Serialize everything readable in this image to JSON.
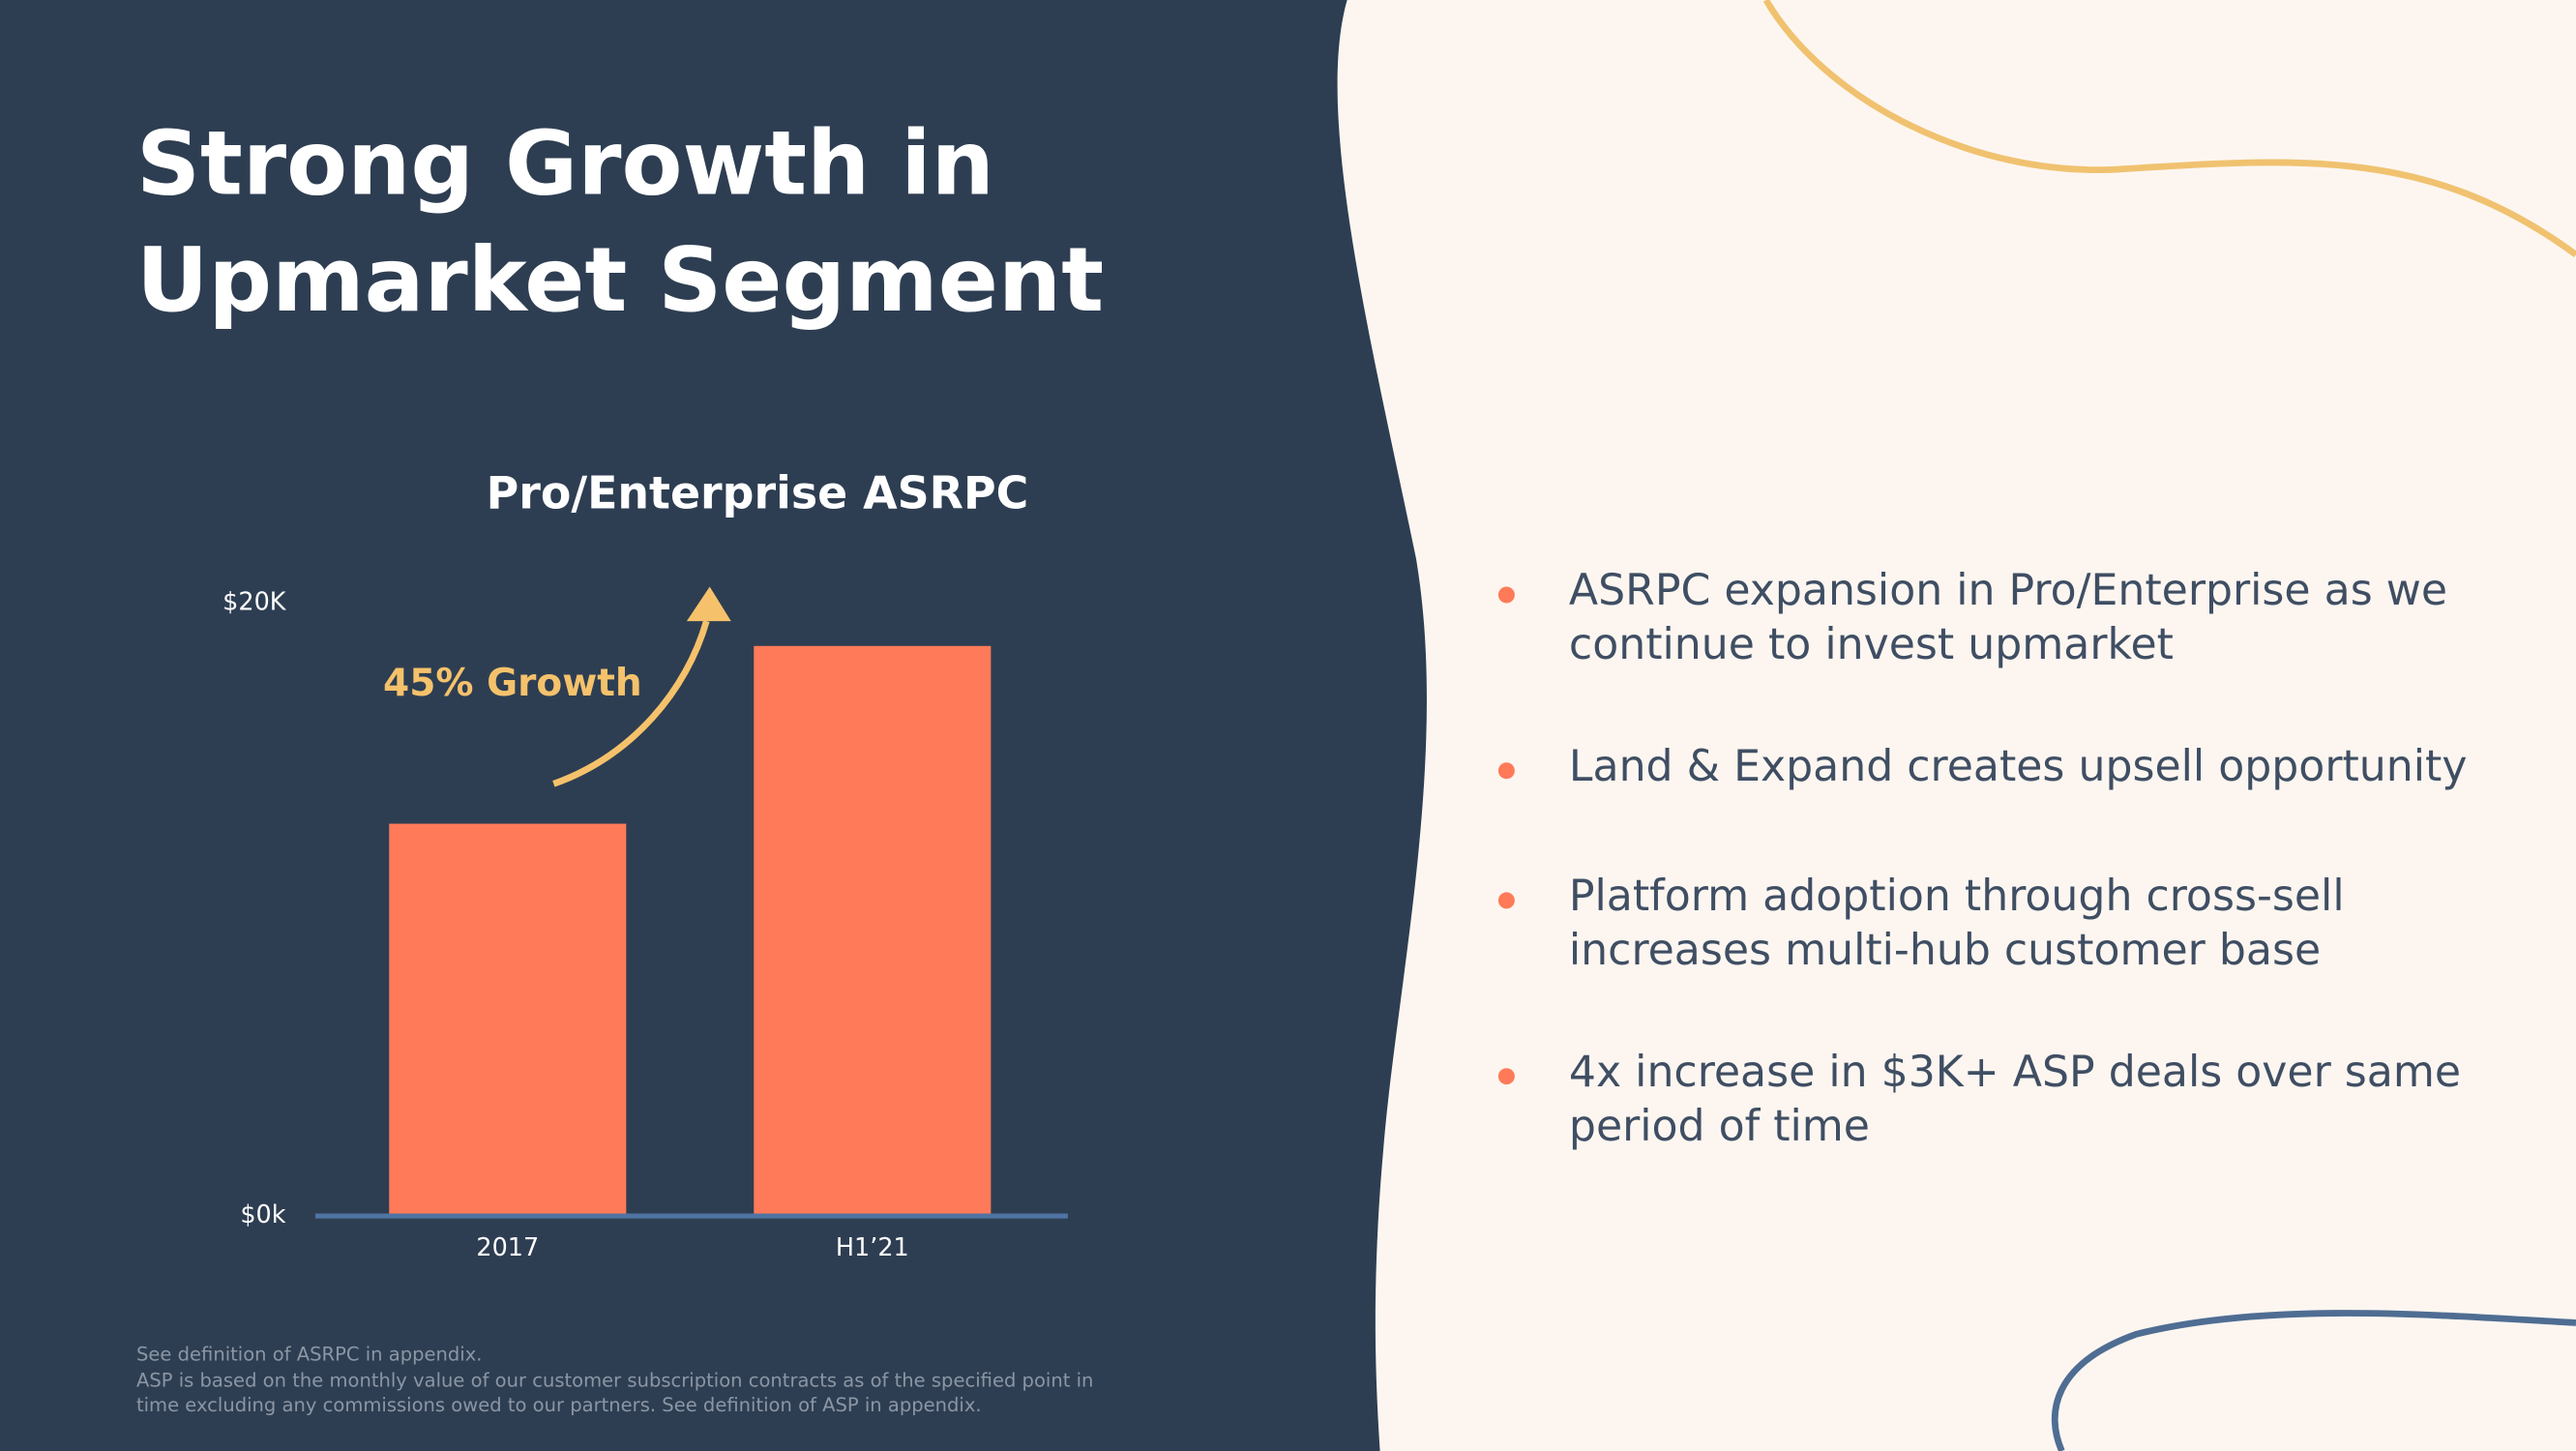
{
  "slide": {
    "title": "Strong Growth in Upmarket Segment",
    "bullets": [
      "ASRPC expansion in Pro/Enterprise as we continue to invest upmarket",
      "Land & Expand creates upsell opportunity",
      "Platform adoption through cross-sell increases multi-hub customer base",
      "4x increase in $3K+ ASP deals over same period of time"
    ],
    "footnotes": [
      "See definition of ASRPC in appendix.",
      "ASP is based on the monthly value of our customer subscription contracts as of the specified point in time excluding any commissions owed to our partners. See definition of ASP in appendix."
    ]
  },
  "chart_data": {
    "type": "bar",
    "title": "Pro/Enterprise ASRPC",
    "annotation": "45% Growth",
    "categories": [
      "2017",
      "H1’21"
    ],
    "values": [
      12800,
      18600
    ],
    "color": "#ff7a59",
    "ylim": [
      0,
      20000
    ],
    "yticks": [
      {
        "value": 0,
        "label": "$0k"
      },
      {
        "value": 20000,
        "label": "$20K"
      }
    ]
  }
}
